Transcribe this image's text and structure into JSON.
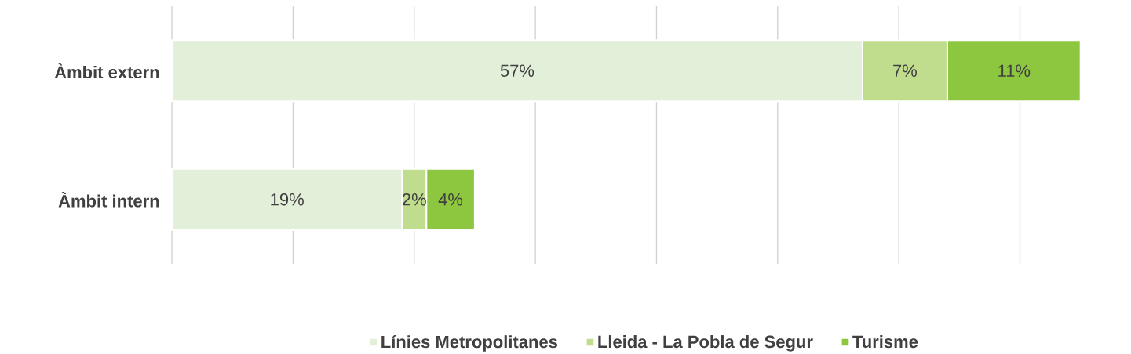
{
  "chart_data": {
    "type": "bar",
    "orientation": "horizontal",
    "stacked": true,
    "categories": [
      "Àmbit extern",
      "Àmbit intern"
    ],
    "series": [
      {
        "name": "Línies Metropolitanes",
        "color": "#e2efd9",
        "values": [
          57,
          19
        ],
        "value_labels": [
          "57%",
          "19%"
        ]
      },
      {
        "name": "Lleida - La Pobla de Segur",
        "color": "#c0dd8e",
        "values": [
          7,
          2
        ],
        "value_labels": [
          "7%",
          "2%"
        ]
      },
      {
        "name": "Turisme",
        "color": "#8dc63f",
        "values": [
          11,
          4
        ],
        "value_labels": [
          "11%",
          "4%"
        ]
      }
    ],
    "xticks": [
      {
        "value": 0,
        "label": null
      },
      {
        "value": 10,
        "label": null
      },
      {
        "value": 20,
        "label": null
      },
      {
        "value": 30,
        "label": null
      },
      {
        "value": 40,
        "label": null
      },
      {
        "value": 50,
        "label": null
      },
      {
        "value": 60,
        "label": null
      },
      {
        "value": 70,
        "label": null
      }
    ],
    "tick_labels": "y",
    "grid": "x",
    "legend": "bottom"
  }
}
